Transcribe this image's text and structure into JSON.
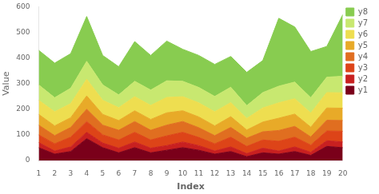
{
  "chart_data": {
    "type": "area",
    "stacked": true,
    "x": [
      1,
      2,
      3,
      4,
      5,
      6,
      7,
      8,
      9,
      10,
      11,
      12,
      13,
      14,
      15,
      16,
      17,
      18,
      19,
      20
    ],
    "series": [
      {
        "name": "y1",
        "color": "#7a001a",
        "values": [
          50,
          25,
          35,
          85,
          50,
          30,
          50,
          30,
          40,
          50,
          40,
          25,
          35,
          15,
          30,
          25,
          35,
          20,
          55,
          50
        ]
      },
      {
        "name": "y2",
        "color": "#c82020",
        "values": [
          20,
          12,
          18,
          25,
          18,
          18,
          22,
          18,
          18,
          22,
          18,
          12,
          18,
          12,
          18,
          12,
          18,
          12,
          22,
          22
        ]
      },
      {
        "name": "y3",
        "color": "#dd4418",
        "values": [
          30,
          28,
          38,
          42,
          32,
          32,
          38,
          32,
          38,
          38,
          32,
          28,
          38,
          28,
          32,
          38,
          38,
          28,
          38,
          42
        ]
      },
      {
        "name": "y4",
        "color": "#e06e20",
        "values": [
          38,
          32,
          38,
          48,
          38,
          38,
          42,
          38,
          42,
          42,
          38,
          32,
          38,
          32,
          32,
          42,
          42,
          32,
          42,
          42
        ]
      },
      {
        "name": "y5",
        "color": "#e8aa28",
        "values": [
          42,
          38,
          38,
          52,
          42,
          38,
          42,
          42,
          48,
          42,
          42,
          38,
          42,
          32,
          38,
          48,
          48,
          38,
          48,
          48
        ]
      },
      {
        "name": "y6",
        "color": "#eede50",
        "values": [
          55,
          55,
          55,
          65,
          55,
          50,
          55,
          55,
          60,
          55,
          55,
          55,
          55,
          45,
          55,
          60,
          60,
          55,
          60,
          60
        ]
      },
      {
        "name": "y7",
        "color": "#c8e870",
        "values": [
          60,
          55,
          60,
          70,
          60,
          50,
          60,
          60,
          65,
          60,
          60,
          60,
          60,
          50,
          60,
          65,
          65,
          60,
          60,
          65
        ]
      },
      {
        "name": "y8",
        "color": "#88cc50",
        "values": [
          135,
          135,
          135,
          175,
          115,
          110,
          155,
          135,
          155,
          125,
          125,
          125,
          120,
          130,
          125,
          265,
          215,
          180,
          120,
          240
        ]
      }
    ],
    "xlabel": "Index",
    "ylabel": "Value",
    "xlim": [
      1,
      20
    ],
    "xticks": [
      1,
      2,
      3,
      4,
      5,
      6,
      7,
      8,
      9,
      10,
      11,
      12,
      13,
      14,
      15,
      16,
      17,
      18,
      19,
      20
    ],
    "ylim": [
      0,
      600
    ],
    "yticks": [
      0,
      100,
      200,
      300,
      400,
      500,
      600
    ],
    "grid": false,
    "legend": "right"
  }
}
